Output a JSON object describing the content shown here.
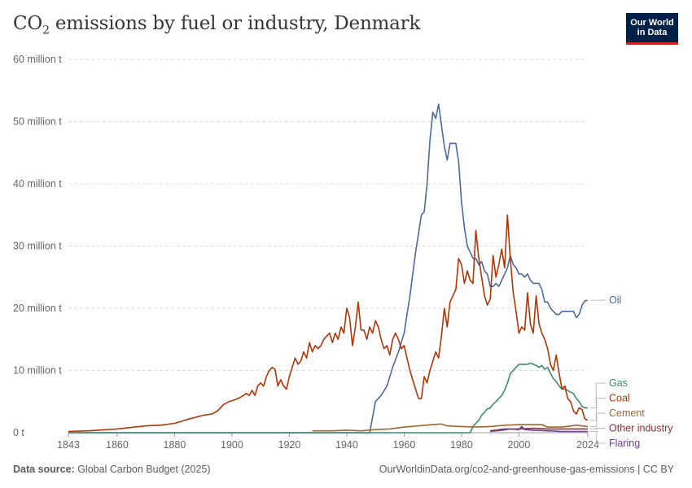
{
  "title": {
    "main": "CO",
    "subscript": "2",
    "rest": " emissions by fuel or industry, Denmark"
  },
  "logo": {
    "line1": "Our World",
    "line2": "in Data",
    "bg_color": "#002147",
    "accent_color": "#ce261e"
  },
  "footer": {
    "source_label": "Data source:",
    "source_text": " Global Carbon Budget (2025)",
    "url_text": "OurWorldinData.org/co2-and-greenhouse-gas-emissions | CC BY"
  },
  "chart_data": {
    "type": "line",
    "title": "CO₂ emissions by fuel or industry, Denmark",
    "xlabel": "",
    "ylabel": "",
    "xlim": [
      1843,
      2024
    ],
    "ylim": [
      0,
      60
    ],
    "unit": "million t",
    "x_ticks": [
      1843,
      1860,
      1880,
      1900,
      1920,
      1940,
      1960,
      1980,
      2000,
      2024
    ],
    "y_ticks": [
      {
        "value": 0,
        "label": "0 t"
      },
      {
        "value": 10,
        "label": "10 million t"
      },
      {
        "value": 20,
        "label": "20 million t"
      },
      {
        "value": 30,
        "label": "30 million t"
      },
      {
        "value": 40,
        "label": "40 million t"
      },
      {
        "value": 50,
        "label": "50 million t"
      },
      {
        "value": 60,
        "label": "60 million t"
      }
    ],
    "grid": true,
    "legend": "right-end labels",
    "series": [
      {
        "name": "Oil",
        "color": "#4c6a9c",
        "label_value": 21.3,
        "points": [
          [
            1843,
            0
          ],
          [
            1948,
            0
          ],
          [
            1950,
            5
          ],
          [
            1952,
            6
          ],
          [
            1954,
            7.5
          ],
          [
            1956,
            10.5
          ],
          [
            1958,
            13
          ],
          [
            1960,
            16
          ],
          [
            1962,
            22
          ],
          [
            1964,
            29
          ],
          [
            1966,
            35
          ],
          [
            1967,
            35.5
          ],
          [
            1968,
            40
          ],
          [
            1969,
            47
          ],
          [
            1970,
            51.5
          ],
          [
            1971,
            50.5
          ],
          [
            1972,
            52.8
          ],
          [
            1973,
            49.5
          ],
          [
            1974,
            46
          ],
          [
            1975,
            43.8
          ],
          [
            1976,
            46.5
          ],
          [
            1977,
            46.5
          ],
          [
            1978,
            46.5
          ],
          [
            1979,
            43.5
          ],
          [
            1980,
            37
          ],
          [
            1981,
            33
          ],
          [
            1982,
            30
          ],
          [
            1983,
            29
          ],
          [
            1984,
            28
          ],
          [
            1985,
            28
          ],
          [
            1986,
            27
          ],
          [
            1987,
            27.5
          ],
          [
            1988,
            26
          ],
          [
            1989,
            25.5
          ],
          [
            1990,
            23.5
          ],
          [
            1991,
            23.5
          ],
          [
            1992,
            24
          ],
          [
            1993,
            23.5
          ],
          [
            1994,
            24.5
          ],
          [
            1995,
            25.5
          ],
          [
            1996,
            26.5
          ],
          [
            1997,
            28.5
          ],
          [
            1998,
            27
          ],
          [
            1999,
            26.5
          ],
          [
            2000,
            25.5
          ],
          [
            2001,
            25.5
          ],
          [
            2002,
            25
          ],
          [
            2003,
            25.5
          ],
          [
            2004,
            24.5
          ],
          [
            2005,
            24
          ],
          [
            2006,
            24
          ],
          [
            2007,
            24
          ],
          [
            2008,
            23
          ],
          [
            2009,
            21
          ],
          [
            2010,
            21
          ],
          [
            2011,
            20
          ],
          [
            2012,
            19.5
          ],
          [
            2013,
            19
          ],
          [
            2014,
            19
          ],
          [
            2015,
            19.5
          ],
          [
            2016,
            19.5
          ],
          [
            2017,
            19.5
          ],
          [
            2018,
            19.5
          ],
          [
            2019,
            19.5
          ],
          [
            2020,
            18.5
          ],
          [
            2021,
            19
          ],
          [
            2022,
            20.5
          ],
          [
            2023,
            21.2
          ],
          [
            2024,
            21.3
          ]
        ]
      },
      {
        "name": "Gas",
        "color": "#3a8c6b",
        "label_value": 4.0,
        "points": [
          [
            1843,
            0
          ],
          [
            1983,
            0
          ],
          [
            1984,
            1
          ],
          [
            1985,
            1.5
          ],
          [
            1986,
            2
          ],
          [
            1987,
            2.8
          ],
          [
            1988,
            3.3
          ],
          [
            1989,
            3.8
          ],
          [
            1990,
            4
          ],
          [
            1991,
            4.6
          ],
          [
            1992,
            5
          ],
          [
            1993,
            5.5
          ],
          [
            1994,
            6
          ],
          [
            1995,
            6.8
          ],
          [
            1996,
            8
          ],
          [
            1997,
            9.5
          ],
          [
            1998,
            10
          ],
          [
            1999,
            10.5
          ],
          [
            2000,
            11
          ],
          [
            2001,
            11
          ],
          [
            2002,
            11
          ],
          [
            2003,
            11
          ],
          [
            2004,
            11.2
          ],
          [
            2005,
            11
          ],
          [
            2006,
            10.8
          ],
          [
            2007,
            10.5
          ],
          [
            2008,
            10.8
          ],
          [
            2009,
            10.2
          ],
          [
            2010,
            10.5
          ],
          [
            2011,
            9.5
          ],
          [
            2012,
            8.7
          ],
          [
            2013,
            8.2
          ],
          [
            2014,
            7.5
          ],
          [
            2015,
            7
          ],
          [
            2016,
            7
          ],
          [
            2017,
            6.8
          ],
          [
            2018,
            6.5
          ],
          [
            2019,
            6.3
          ],
          [
            2020,
            5.5
          ],
          [
            2021,
            5
          ],
          [
            2022,
            4.2
          ],
          [
            2023,
            4
          ],
          [
            2024,
            4
          ]
        ]
      },
      {
        "name": "Coal",
        "color": "#b13507",
        "label_value": 2.0,
        "points": [
          [
            1843,
            0.2
          ],
          [
            1850,
            0.3
          ],
          [
            1860,
            0.6
          ],
          [
            1870,
            1.1
          ],
          [
            1875,
            1.2
          ],
          [
            1880,
            1.5
          ],
          [
            1885,
            2.2
          ],
          [
            1890,
            2.8
          ],
          [
            1893,
            3
          ],
          [
            1895,
            3.5
          ],
          [
            1897,
            4.5
          ],
          [
            1899,
            5
          ],
          [
            1901,
            5.3
          ],
          [
            1903,
            5.7
          ],
          [
            1905,
            6.3
          ],
          [
            1906,
            6
          ],
          [
            1907,
            6.8
          ],
          [
            1908,
            6
          ],
          [
            1909,
            7.5
          ],
          [
            1910,
            8
          ],
          [
            1911,
            7.5
          ],
          [
            1912,
            9
          ],
          [
            1913,
            10
          ],
          [
            1914,
            10.5
          ],
          [
            1915,
            10.2
          ],
          [
            1916,
            7.5
          ],
          [
            1917,
            8.5
          ],
          [
            1918,
            7.5
          ],
          [
            1919,
            7
          ],
          [
            1920,
            9
          ],
          [
            1921,
            10.5
          ],
          [
            1922,
            12
          ],
          [
            1923,
            11
          ],
          [
            1924,
            11.5
          ],
          [
            1925,
            13
          ],
          [
            1926,
            12
          ],
          [
            1927,
            14.5
          ],
          [
            1928,
            13
          ],
          [
            1929,
            14
          ],
          [
            1930,
            13.5
          ],
          [
            1931,
            14
          ],
          [
            1932,
            15
          ],
          [
            1933,
            15.5
          ],
          [
            1934,
            16
          ],
          [
            1935,
            14.5
          ],
          [
            1936,
            16
          ],
          [
            1937,
            15
          ],
          [
            1938,
            17
          ],
          [
            1939,
            16
          ],
          [
            1940,
            20
          ],
          [
            1941,
            18.5
          ],
          [
            1942,
            14
          ],
          [
            1943,
            17
          ],
          [
            1944,
            21
          ],
          [
            1945,
            16.5
          ],
          [
            1946,
            16.5
          ],
          [
            1947,
            15
          ],
          [
            1948,
            17
          ],
          [
            1949,
            16
          ],
          [
            1950,
            18
          ],
          [
            1951,
            17
          ],
          [
            1952,
            15
          ],
          [
            1953,
            13.5
          ],
          [
            1954,
            14
          ],
          [
            1955,
            12.5
          ],
          [
            1956,
            15
          ],
          [
            1957,
            16
          ],
          [
            1958,
            15
          ],
          [
            1959,
            13.5
          ],
          [
            1960,
            14
          ],
          [
            1961,
            12
          ],
          [
            1962,
            10
          ],
          [
            1963,
            8.5
          ],
          [
            1964,
            7
          ],
          [
            1965,
            5.5
          ],
          [
            1966,
            5.5
          ],
          [
            1967,
            9
          ],
          [
            1968,
            8
          ],
          [
            1969,
            10
          ],
          [
            1970,
            11.5
          ],
          [
            1971,
            13
          ],
          [
            1972,
            12
          ],
          [
            1973,
            15.5
          ],
          [
            1974,
            20
          ],
          [
            1975,
            17
          ],
          [
            1976,
            21
          ],
          [
            1977,
            22
          ],
          [
            1978,
            23
          ],
          [
            1979,
            28
          ],
          [
            1980,
            27
          ],
          [
            1981,
            24
          ],
          [
            1982,
            26
          ],
          [
            1983,
            24.5
          ],
          [
            1984,
            24
          ],
          [
            1985,
            32.5
          ],
          [
            1986,
            28
          ],
          [
            1987,
            25
          ],
          [
            1988,
            22
          ],
          [
            1989,
            20.5
          ],
          [
            1990,
            21.5
          ],
          [
            1991,
            28.5
          ],
          [
            1992,
            25
          ],
          [
            1993,
            27
          ],
          [
            1994,
            29.5
          ],
          [
            1995,
            26.5
          ],
          [
            1996,
            35
          ],
          [
            1997,
            28
          ],
          [
            1998,
            22.5
          ],
          [
            1999,
            19.5
          ],
          [
            2000,
            16
          ],
          [
            2001,
            17
          ],
          [
            2002,
            16.5
          ],
          [
            2003,
            22.5
          ],
          [
            2004,
            17.5
          ],
          [
            2005,
            16
          ],
          [
            2006,
            22
          ],
          [
            2007,
            17.5
          ],
          [
            2008,
            16
          ],
          [
            2009,
            15
          ],
          [
            2010,
            13.5
          ],
          [
            2011,
            11
          ],
          [
            2012,
            10
          ],
          [
            2013,
            12.5
          ],
          [
            2014,
            9.5
          ],
          [
            2015,
            7
          ],
          [
            2016,
            7.5
          ],
          [
            2017,
            5.5
          ],
          [
            2018,
            5
          ],
          [
            2019,
            3.5
          ],
          [
            2020,
            3
          ],
          [
            2021,
            4
          ],
          [
            2022,
            3.7
          ],
          [
            2023,
            2.2
          ],
          [
            2024,
            2.0
          ]
        ]
      },
      {
        "name": "Cement",
        "color": "#a2662c",
        "label_value": 1.0,
        "points": [
          [
            1928,
            0.3
          ],
          [
            1935,
            0.3
          ],
          [
            1940,
            0.4
          ],
          [
            1945,
            0.3
          ],
          [
            1950,
            0.5
          ],
          [
            1955,
            0.6
          ],
          [
            1960,
            0.9
          ],
          [
            1965,
            1.1
          ],
          [
            1970,
            1.3
          ],
          [
            1973,
            1.4
          ],
          [
            1975,
            1.1
          ],
          [
            1980,
            1.0
          ],
          [
            1985,
            0.9
          ],
          [
            1990,
            1.0
          ],
          [
            1995,
            1.2
          ],
          [
            2000,
            1.3
          ],
          [
            2005,
            1.3
          ],
          [
            2008,
            1.3
          ],
          [
            2010,
            0.9
          ],
          [
            2015,
            0.9
          ],
          [
            2020,
            1.2
          ],
          [
            2024,
            1.0
          ]
        ]
      },
      {
        "name": "Other industry",
        "color": "#883039",
        "label_value": 0.6,
        "points": [
          [
            1990,
            0.3
          ],
          [
            1995,
            0.6
          ],
          [
            2000,
            0.6
          ],
          [
            2005,
            0.7
          ],
          [
            2010,
            0.6
          ],
          [
            2015,
            0.6
          ],
          [
            2020,
            0.6
          ],
          [
            2024,
            0.6
          ]
        ]
      },
      {
        "name": "Flaring",
        "color": "#6d3e91",
        "label_value": 0.2,
        "points": [
          [
            1990,
            0.2
          ],
          [
            1994,
            0.4
          ],
          [
            1997,
            0.6
          ],
          [
            2000,
            0.5
          ],
          [
            2001,
            1.0
          ],
          [
            2002,
            0.5
          ],
          [
            2005,
            0.4
          ],
          [
            2010,
            0.3
          ],
          [
            2015,
            0.2
          ],
          [
            2020,
            0.2
          ],
          [
            2024,
            0.2
          ]
        ]
      }
    ]
  }
}
